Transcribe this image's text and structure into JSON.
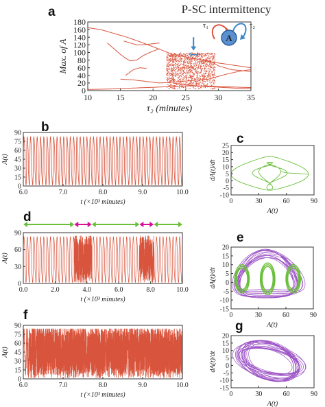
{
  "title": "P-SC intermittency",
  "colors": {
    "red": "#d9543c",
    "green": "#6abf3a",
    "purple": "#9a4fc4",
    "magenta": "#d6109a",
    "blue": "#3a86c8"
  },
  "icon_names": [
    "down-arrow-icon",
    "interval-bracket-icon",
    "network-motif-icon"
  ],
  "panels": {
    "a": {
      "letter": "a"
    },
    "b": {
      "letter": "b"
    },
    "c": {
      "letter": "c"
    },
    "d": {
      "letter": "d"
    },
    "e": {
      "letter": "e"
    },
    "f": {
      "letter": "f"
    },
    "g": {
      "letter": "g"
    }
  },
  "motif": {
    "node_label": "A",
    "tau1_label": "τ₁",
    "tau2_label": "τ₂"
  },
  "chart_data": [
    {
      "id": "a",
      "type": "scatter",
      "title": "P-SC intermittency",
      "xlabel": "τ₂ (minutes)",
      "ylabel": "Max. of A",
      "xlim": [
        10,
        35
      ],
      "ylim": [
        0,
        180
      ],
      "xticks": [
        "10",
        "15",
        "20",
        "25",
        "30",
        "35"
      ],
      "yticks": [
        "0",
        "20",
        "40",
        "60",
        "80",
        "100",
        "120",
        "140",
        "160",
        "180"
      ],
      "color": "#d9543c",
      "branches": [
        {
          "x": [
            10,
            12,
            14,
            16,
            18,
            20,
            21.5,
            23,
            25,
            27,
            29,
            31,
            33,
            35
          ],
          "y": [
            165,
            160,
            150,
            140,
            128,
            115,
            105,
            95,
            88,
            82,
            75,
            70,
            65,
            60
          ]
        },
        {
          "x": [
            13,
            14,
            15,
            15.8,
            16.5,
            17.5,
            18.5,
            19.5,
            21
          ],
          "y": [
            125,
            110,
            95,
            85,
            78,
            80,
            92,
            100,
            110
          ]
        },
        {
          "x": [
            15.5,
            16.5,
            17.5,
            18.5,
            19.5,
            21
          ],
          "y": [
            130,
            125,
            120,
            120,
            122,
            125
          ]
        },
        {
          "x": [
            15.8,
            17,
            18,
            19
          ],
          "y": [
            40,
            55,
            60,
            58
          ]
        },
        {
          "x": [
            15,
            17,
            19,
            21,
            23,
            25,
            27,
            28.5
          ],
          "y": [
            30,
            28,
            24,
            20,
            22,
            25,
            28,
            30
          ]
        },
        {
          "x": [
            23,
            25,
            27,
            29,
            31,
            33,
            35
          ],
          "y": [
            20,
            15,
            12,
            10,
            8,
            6,
            5
          ]
        },
        {
          "x": [
            10,
            13,
            16,
            19,
            22,
            25,
            28,
            31,
            35
          ],
          "y": [
            3,
            4,
            6,
            8,
            10,
            12,
            12,
            10,
            8
          ]
        },
        {
          "x": [
            28.5,
            30,
            32,
            35
          ],
          "y": [
            80,
            65,
            55,
            50
          ]
        },
        {
          "x": [
            28.5,
            29.5,
            31,
            33,
            35
          ],
          "y": [
            30,
            35,
            42,
            50,
            55
          ]
        }
      ],
      "chaotic_band": {
        "x": [
          22,
          29.5
        ],
        "y": [
          5,
          100
        ]
      },
      "annotation": {
        "x": 26.2,
        "y_arrow_top": 140,
        "y_arrow_bottom": 105,
        "bracket_x": [
          25.8,
          26.8
        ]
      }
    },
    {
      "id": "b",
      "type": "line",
      "xlabel": "t (×10³ minutes)",
      "ylabel": "A(t)",
      "xlim": [
        6.0,
        10.0
      ],
      "ylim": [
        0,
        90
      ],
      "xticks": [
        "6.0",
        "7.0",
        "8.0",
        "9.0",
        "10.0"
      ],
      "yticks": [
        "0",
        "15",
        "30",
        "45",
        "60",
        "75",
        "90"
      ],
      "color": "#d9543c",
      "signal": {
        "cycles": 48,
        "max": 82,
        "min": 3,
        "regular": true
      }
    },
    {
      "id": "c",
      "type": "line",
      "xlabel": "A(t)",
      "ylabel": "dA(t)/dt",
      "xlim": [
        0,
        90
      ],
      "ylim": [
        -10,
        25
      ],
      "xticks": [
        "0",
        "30",
        "60",
        "90"
      ],
      "yticks": [
        "-10",
        "-5",
        "0",
        "5",
        "10",
        "15",
        "20",
        "25"
      ],
      "color": "#6abf3a",
      "orbit": {
        "peaks": [
          82,
          55,
          48
        ]
      }
    },
    {
      "id": "d",
      "type": "line",
      "xlabel": "t (×10³ minutes)",
      "ylabel": "A(t)",
      "xlim": [
        0.0,
        10.0
      ],
      "ylim": [
        0,
        90
      ],
      "xticks": [
        "0.0",
        "2.0",
        "4.0",
        "6.0",
        "8.0",
        "10.0"
      ],
      "yticks": [
        "0",
        "30",
        "60",
        "90"
      ],
      "color": "#d9543c",
      "segments": [
        {
          "type": "periodic",
          "start": 0.0,
          "end": 3.2,
          "color": "#6abf3a"
        },
        {
          "type": "chaotic",
          "start": 3.2,
          "end": 4.3,
          "color": "#d6109a"
        },
        {
          "type": "periodic",
          "start": 4.3,
          "end": 7.3,
          "color": "#6abf3a"
        },
        {
          "type": "chaotic",
          "start": 7.3,
          "end": 8.2,
          "color": "#d6109a"
        },
        {
          "type": "periodic",
          "start": 8.2,
          "end": 10.0,
          "color": "#6abf3a"
        }
      ]
    },
    {
      "id": "e",
      "type": "line",
      "xlabel": "A(t)",
      "ylabel": "dA(t)/dt",
      "xlim": [
        0,
        90
      ],
      "ylim": [
        -15,
        20
      ],
      "xticks": [
        "0",
        "30",
        "60",
        "90"
      ],
      "yticks": [
        "-15",
        "-10",
        "-5",
        "0",
        "5",
        "10",
        "15",
        "20"
      ],
      "colors": [
        "#9a4fc4",
        "#6abf3a"
      ]
    },
    {
      "id": "f",
      "type": "line",
      "xlabel": "t (×10³ minutes)",
      "ylabel": "A(t)",
      "xlim": [
        6.0,
        10.0
      ],
      "ylim": [
        0,
        90
      ],
      "xticks": [
        "6.0",
        "7.0",
        "8.0",
        "9.0",
        "10.0"
      ],
      "yticks": [
        "0",
        "15",
        "30",
        "45",
        "60",
        "75",
        "90"
      ],
      "color": "#d9543c",
      "signal": {
        "cycles": 48,
        "max": 80,
        "min": 5,
        "regular": false
      }
    },
    {
      "id": "g",
      "type": "line",
      "xlabel": "A(t)",
      "ylabel": "dA(t)/dt",
      "xlim": [
        0,
        90
      ],
      "ylim": [
        -15,
        20
      ],
      "xticks": [
        "0",
        "30",
        "60",
        "90"
      ],
      "yticks": [
        "-15",
        "-10",
        "-5",
        "0",
        "5",
        "10",
        "15",
        "20"
      ],
      "color": "#9a4fc4"
    }
  ]
}
